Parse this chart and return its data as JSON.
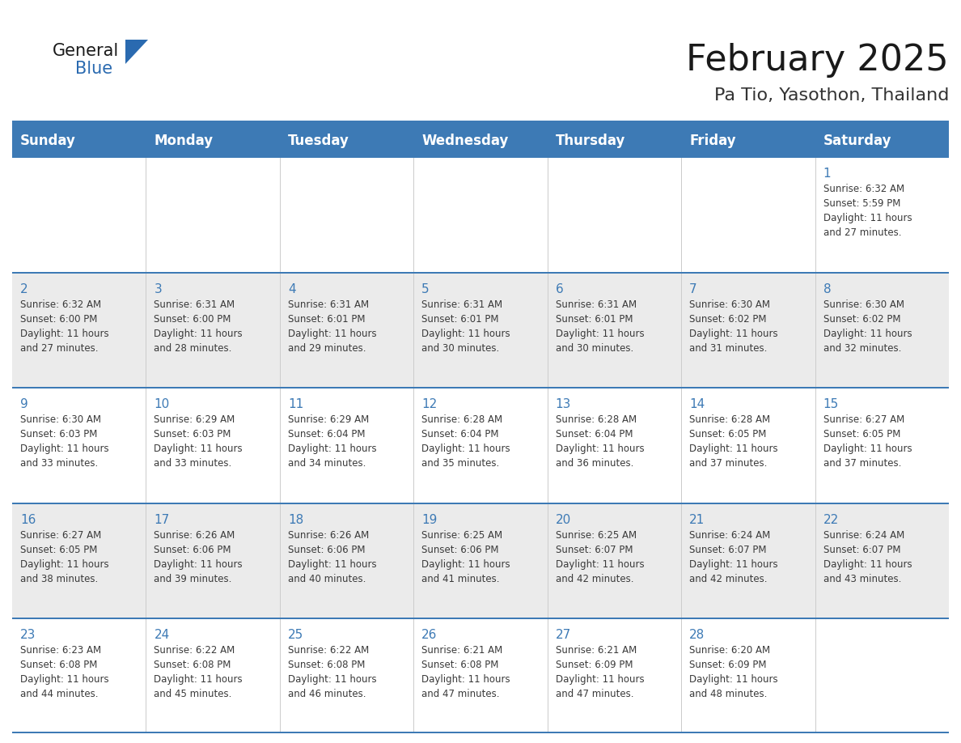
{
  "title": "February 2025",
  "subtitle": "Pa Tio, Yasothon, Thailand",
  "header_color": "#3d7ab5",
  "header_text_color": "#ffffff",
  "grid_line_color": "#3d7ab5",
  "day_names": [
    "Sunday",
    "Monday",
    "Tuesday",
    "Wednesday",
    "Thursday",
    "Friday",
    "Saturday"
  ],
  "bg_color": "#ffffff",
  "cell_bg_even": "#ebebeb",
  "cell_bg_odd": "#ffffff",
  "day_number_color": "#3d7ab5",
  "text_color": "#3a3a3a",
  "title_color": "#1a1a1a",
  "subtitle_color": "#333333",
  "calendar_data": [
    [
      null,
      null,
      null,
      null,
      null,
      null,
      {
        "day": 1,
        "sunrise": "6:32 AM",
        "sunset": "5:59 PM",
        "daylight": "11 hours and 27 minutes."
      }
    ],
    [
      {
        "day": 2,
        "sunrise": "6:32 AM",
        "sunset": "6:00 PM",
        "daylight": "11 hours and 27 minutes."
      },
      {
        "day": 3,
        "sunrise": "6:31 AM",
        "sunset": "6:00 PM",
        "daylight": "11 hours and 28 minutes."
      },
      {
        "day": 4,
        "sunrise": "6:31 AM",
        "sunset": "6:01 PM",
        "daylight": "11 hours and 29 minutes."
      },
      {
        "day": 5,
        "sunrise": "6:31 AM",
        "sunset": "6:01 PM",
        "daylight": "11 hours and 30 minutes."
      },
      {
        "day": 6,
        "sunrise": "6:31 AM",
        "sunset": "6:01 PM",
        "daylight": "11 hours and 30 minutes."
      },
      {
        "day": 7,
        "sunrise": "6:30 AM",
        "sunset": "6:02 PM",
        "daylight": "11 hours and 31 minutes."
      },
      {
        "day": 8,
        "sunrise": "6:30 AM",
        "sunset": "6:02 PM",
        "daylight": "11 hours and 32 minutes."
      }
    ],
    [
      {
        "day": 9,
        "sunrise": "6:30 AM",
        "sunset": "6:03 PM",
        "daylight": "11 hours and 33 minutes."
      },
      {
        "day": 10,
        "sunrise": "6:29 AM",
        "sunset": "6:03 PM",
        "daylight": "11 hours and 33 minutes."
      },
      {
        "day": 11,
        "sunrise": "6:29 AM",
        "sunset": "6:04 PM",
        "daylight": "11 hours and 34 minutes."
      },
      {
        "day": 12,
        "sunrise": "6:28 AM",
        "sunset": "6:04 PM",
        "daylight": "11 hours and 35 minutes."
      },
      {
        "day": 13,
        "sunrise": "6:28 AM",
        "sunset": "6:04 PM",
        "daylight": "11 hours and 36 minutes."
      },
      {
        "day": 14,
        "sunrise": "6:28 AM",
        "sunset": "6:05 PM",
        "daylight": "11 hours and 37 minutes."
      },
      {
        "day": 15,
        "sunrise": "6:27 AM",
        "sunset": "6:05 PM",
        "daylight": "11 hours and 37 minutes."
      }
    ],
    [
      {
        "day": 16,
        "sunrise": "6:27 AM",
        "sunset": "6:05 PM",
        "daylight": "11 hours and 38 minutes."
      },
      {
        "day": 17,
        "sunrise": "6:26 AM",
        "sunset": "6:06 PM",
        "daylight": "11 hours and 39 minutes."
      },
      {
        "day": 18,
        "sunrise": "6:26 AM",
        "sunset": "6:06 PM",
        "daylight": "11 hours and 40 minutes."
      },
      {
        "day": 19,
        "sunrise": "6:25 AM",
        "sunset": "6:06 PM",
        "daylight": "11 hours and 41 minutes."
      },
      {
        "day": 20,
        "sunrise": "6:25 AM",
        "sunset": "6:07 PM",
        "daylight": "11 hours and 42 minutes."
      },
      {
        "day": 21,
        "sunrise": "6:24 AM",
        "sunset": "6:07 PM",
        "daylight": "11 hours and 42 minutes."
      },
      {
        "day": 22,
        "sunrise": "6:24 AM",
        "sunset": "6:07 PM",
        "daylight": "11 hours and 43 minutes."
      }
    ],
    [
      {
        "day": 23,
        "sunrise": "6:23 AM",
        "sunset": "6:08 PM",
        "daylight": "11 hours and 44 minutes."
      },
      {
        "day": 24,
        "sunrise": "6:22 AM",
        "sunset": "6:08 PM",
        "daylight": "11 hours and 45 minutes."
      },
      {
        "day": 25,
        "sunrise": "6:22 AM",
        "sunset": "6:08 PM",
        "daylight": "11 hours and 46 minutes."
      },
      {
        "day": 26,
        "sunrise": "6:21 AM",
        "sunset": "6:08 PM",
        "daylight": "11 hours and 47 minutes."
      },
      {
        "day": 27,
        "sunrise": "6:21 AM",
        "sunset": "6:09 PM",
        "daylight": "11 hours and 47 minutes."
      },
      {
        "day": 28,
        "sunrise": "6:20 AM",
        "sunset": "6:09 PM",
        "daylight": "11 hours and 48 minutes."
      },
      null
    ]
  ]
}
